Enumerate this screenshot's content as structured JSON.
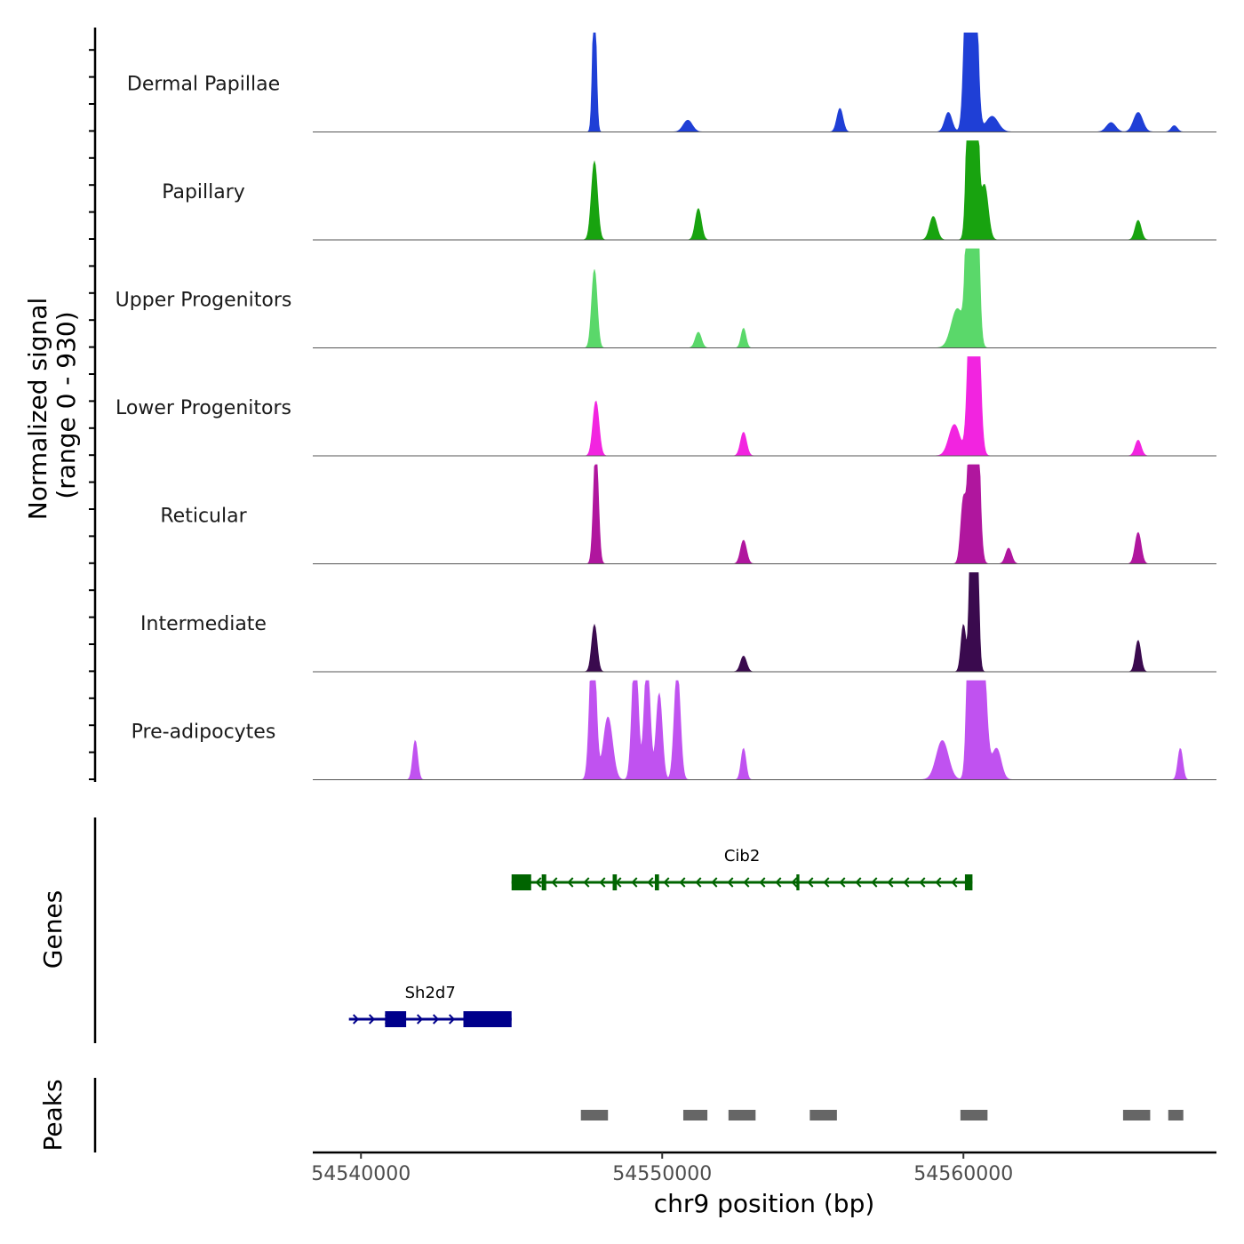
{
  "chart_data": {
    "type": "coverage-track",
    "chromosome": "chr9",
    "xlabel": "chr9 position (bp)",
    "xlim": [
      54538400,
      54568400
    ],
    "xticks": [
      54540000,
      54550000,
      54560000
    ],
    "xtick_labels": [
      "54540000",
      "54550000",
      "54560000"
    ],
    "coverage": {
      "ylabel_line1": "Normalized signal",
      "ylabel_line2": "(range 0 - 930)",
      "ylim": [
        0,
        930
      ],
      "tracks": [
        {
          "name": "Dermal Papillae",
          "color": "#1f3fd6",
          "peaks": [
            [
              54547750,
              180,
              60
            ],
            [
              54550850,
              15,
              150
            ],
            [
              54555900,
              30,
              100
            ],
            [
              54559500,
              25,
              120
            ],
            [
              54560250,
              640,
              130
            ],
            [
              54560950,
              20,
              200
            ],
            [
              54564900,
              12,
              150
            ],
            [
              54565800,
              25,
              150
            ],
            [
              54567000,
              8,
              100
            ]
          ]
        },
        {
          "name": "Papillary",
          "color": "#18a30f",
          "peaks": [
            [
              54547750,
              100,
              100
            ],
            [
              54551200,
              40,
              100
            ],
            [
              54559000,
              30,
              120
            ],
            [
              54560300,
              760,
              110
            ],
            [
              54560700,
              70,
              120
            ],
            [
              54565800,
              25,
              100
            ]
          ]
        },
        {
          "name": "Upper Progenitors",
          "color": "#5ad86a",
          "peaks": [
            [
              54547750,
              100,
              90
            ],
            [
              54551200,
              20,
              100
            ],
            [
              54552700,
              25,
              80
            ],
            [
              54560300,
              810,
              120
            ],
            [
              54559800,
              50,
              200
            ]
          ]
        },
        {
          "name": "Lower Progenitors",
          "color": "#f224e0",
          "peaks": [
            [
              54547800,
              70,
              100
            ],
            [
              54552700,
              30,
              100
            ],
            [
              54560350,
              480,
              130
            ],
            [
              54559700,
              40,
              180
            ],
            [
              54565800,
              20,
              100
            ]
          ]
        },
        {
          "name": "Reticular",
          "color": "#b0169e",
          "peaks": [
            [
              54547800,
              150,
              80
            ],
            [
              54552700,
              30,
              100
            ],
            [
              54560000,
              80,
              90
            ],
            [
              54560350,
              470,
              120
            ],
            [
              54561500,
              20,
              100
            ],
            [
              54565800,
              40,
              100
            ]
          ]
        },
        {
          "name": "Intermediate",
          "color": "#3a0a4e",
          "peaks": [
            [
              54547750,
              60,
              90
            ],
            [
              54552700,
              20,
              100
            ],
            [
              54560000,
              60,
              80
            ],
            [
              54560350,
              550,
              90
            ],
            [
              54565800,
              40,
              90
            ]
          ]
        },
        {
          "name": "Pre-adipocytes",
          "color": "#c052f0",
          "peaks": [
            [
              54541800,
              50,
              80
            ],
            [
              54547700,
              200,
              100
            ],
            [
              54548200,
              80,
              150
            ],
            [
              54549100,
              170,
              100
            ],
            [
              54549500,
              150,
              100
            ],
            [
              54549900,
              110,
              100
            ],
            [
              54550500,
              140,
              100
            ],
            [
              54552700,
              40,
              80
            ],
            [
              54559300,
              50,
              200
            ],
            [
              54560350,
              1050,
              120
            ],
            [
              54560600,
              200,
              140
            ],
            [
              54561100,
              40,
              150
            ],
            [
              54567200,
              40,
              80
            ]
          ]
        }
      ]
    },
    "genes": {
      "label": "Genes",
      "items": [
        {
          "name": "Cib2",
          "color": "#006400",
          "start": 54545000,
          "end": 54560300,
          "strand": "-",
          "exons": [
            [
              54545000,
              54545650
            ],
            [
              54546000,
              54546150
            ],
            [
              54548400,
              54548450
            ],
            [
              54549800,
              54549850
            ],
            [
              54554500,
              54554510
            ],
            [
              54560050,
              54560300
            ]
          ]
        },
        {
          "name": "Sh2d7",
          "color": "#00008b",
          "start": 54539600,
          "end": 54545000,
          "strand": "+",
          "exons": [
            [
              54540800,
              54541500
            ],
            [
              54543400,
              54545000
            ]
          ]
        }
      ]
    },
    "peaks": {
      "label": "Peaks",
      "color": "#666666",
      "regions": [
        [
          54547300,
          54548200
        ],
        [
          54550700,
          54551500
        ],
        [
          54552200,
          54553100
        ],
        [
          54554900,
          54555800
        ],
        [
          54559900,
          54560800
        ],
        [
          54565300,
          54566200
        ],
        [
          54566800,
          54567300
        ]
      ]
    }
  }
}
